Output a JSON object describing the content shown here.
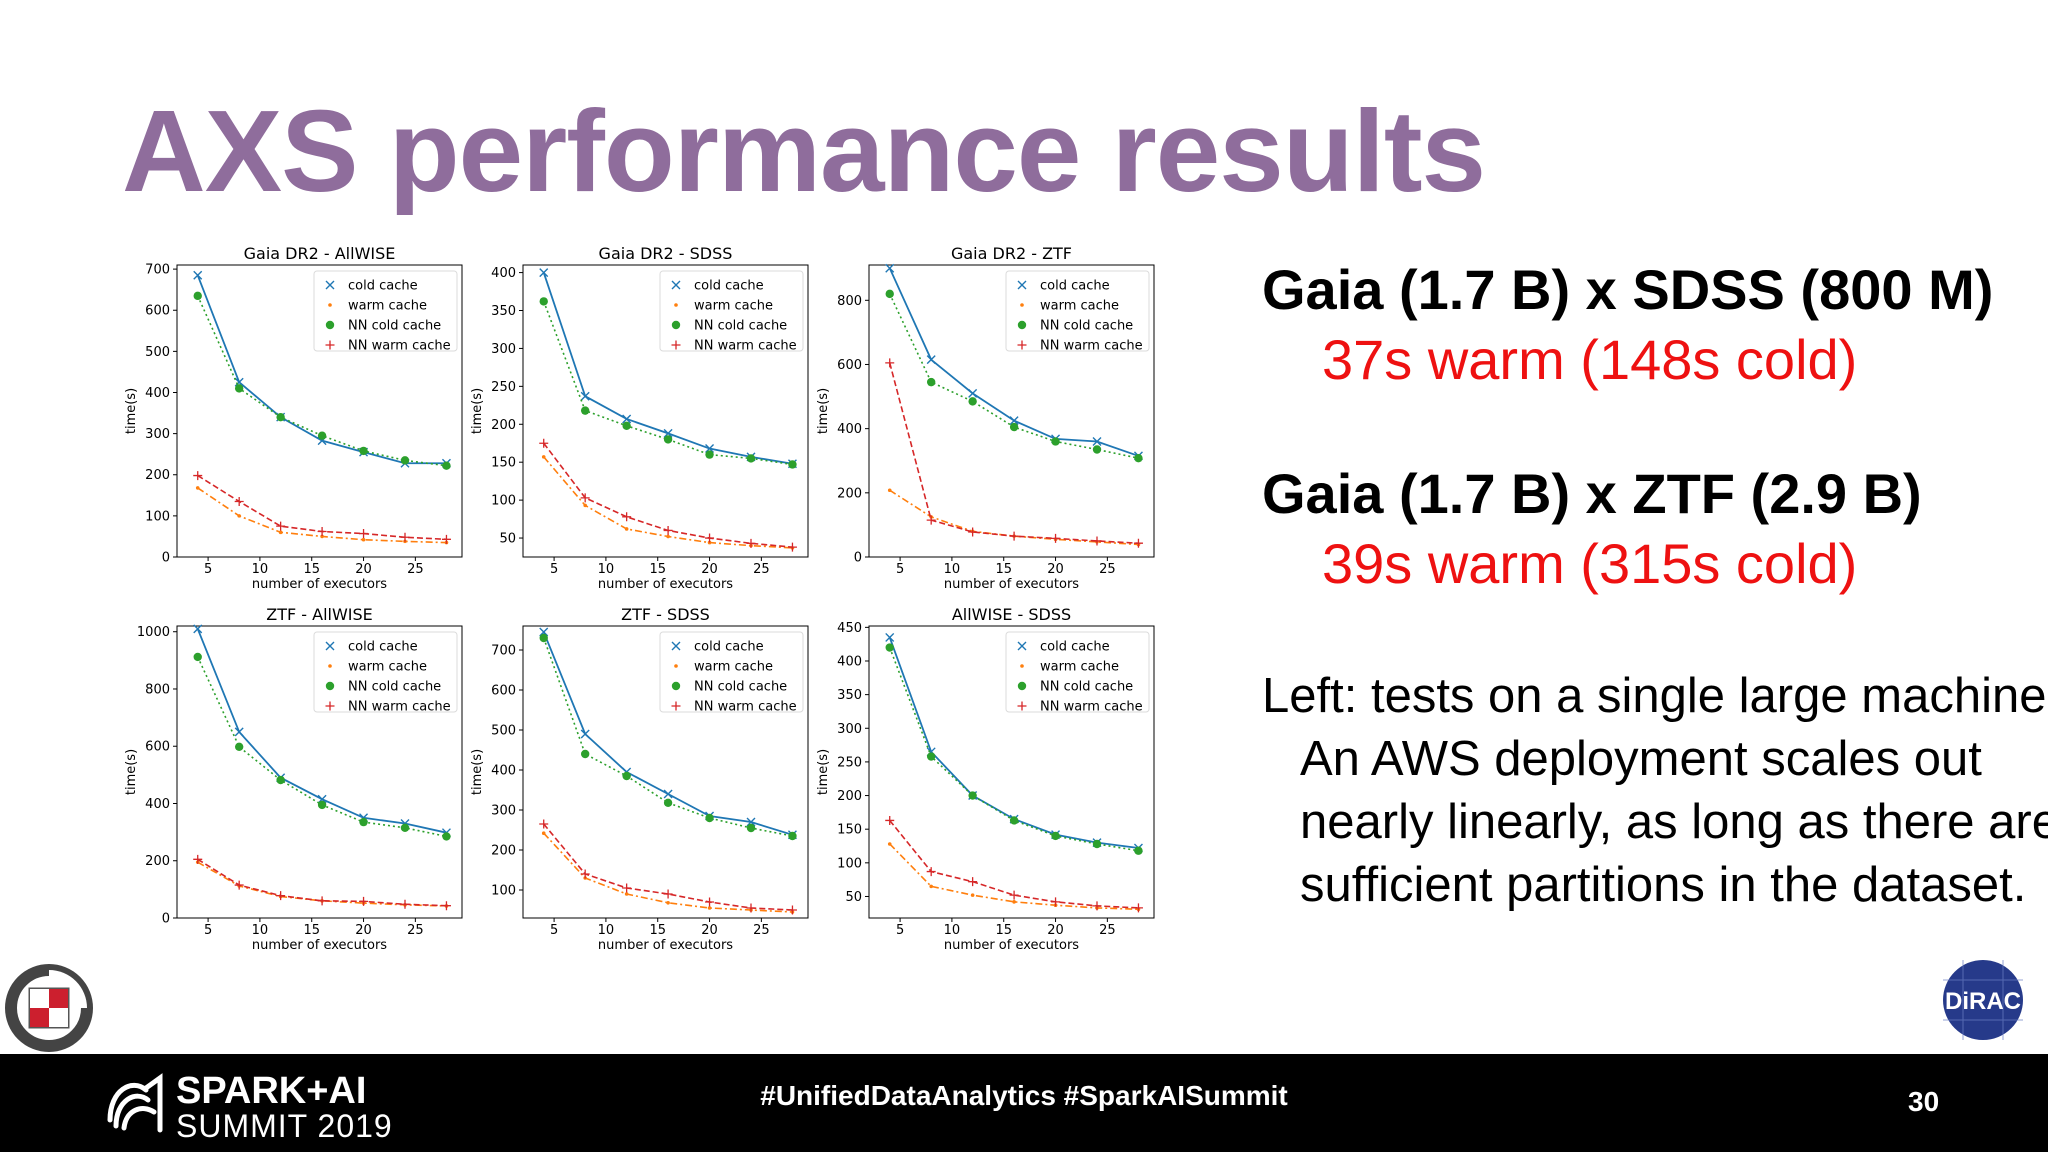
{
  "slide": {
    "title": "AXS performance results",
    "page_number": "30"
  },
  "right_panel": {
    "block1_head": "Gaia (1.7 B) x SDSS (800 M)",
    "block1_sub": "37s warm (148s cold)",
    "block2_head": "Gaia (1.7 B) x ZTF (2.9 B)",
    "block2_sub": "39s warm (315s cold)",
    "note": "Left: tests on a single large machine. An AWS deployment scales out nearly linearly, as long as there are sufficient partitions in the dataset."
  },
  "footer": {
    "brand_line1": "SPARK+AI",
    "brand_line2": "SUMMIT 2019",
    "hashtags": "#UnifiedDataAnalytics #SparkAISummit"
  },
  "logos": {
    "right_badge": "DiRAC"
  },
  "colors": {
    "title": "#8f6d9c",
    "cold": "#1f77b4",
    "warm": "#ff7f0e",
    "nn_cold": "#2ca02c",
    "nn_warm": "#d62728",
    "highlight_red": "#ee1111"
  },
  "chart_data": [
    {
      "type": "line",
      "title": "Gaia DR2 - AllWISE",
      "xlabel": "number of executors",
      "ylabel": "time(s)",
      "xlim": [
        2,
        29.5
      ],
      "ylim": [
        0,
        710
      ],
      "xticks": [
        5,
        10,
        15,
        20,
        25
      ],
      "yticks": [
        0,
        100,
        200,
        300,
        400,
        500,
        600,
        700
      ],
      "legend": "top-right",
      "x": [
        4,
        8,
        12,
        16,
        20,
        24,
        28
      ],
      "series": [
        {
          "name": "cold cache",
          "values": [
            685,
            425,
            340,
            283,
            255,
            228,
            228
          ]
        },
        {
          "name": "warm cache",
          "values": [
            168,
            100,
            60,
            50,
            42,
            38,
            35
          ]
        },
        {
          "name": "NN cold cache",
          "values": [
            635,
            410,
            340,
            295,
            258,
            235,
            222
          ]
        },
        {
          "name": "NN warm cache",
          "values": [
            198,
            135,
            75,
            62,
            57,
            48,
            43
          ]
        }
      ]
    },
    {
      "type": "line",
      "title": "Gaia DR2 - SDSS",
      "xlabel": "number of executors",
      "ylabel": "time(s)",
      "xlim": [
        2,
        29.5
      ],
      "ylim": [
        25,
        410
      ],
      "xticks": [
        5,
        10,
        15,
        20,
        25
      ],
      "yticks": [
        50,
        100,
        150,
        200,
        250,
        300,
        350,
        400
      ],
      "legend": "top-right",
      "x": [
        4,
        8,
        12,
        16,
        20,
        24,
        28
      ],
      "series": [
        {
          "name": "cold cache",
          "values": [
            400,
            237,
            207,
            188,
            168,
            157,
            148
          ]
        },
        {
          "name": "warm cache",
          "values": [
            157,
            93,
            62,
            52,
            44,
            40,
            37
          ]
        },
        {
          "name": "NN cold cache",
          "values": [
            362,
            218,
            198,
            180,
            160,
            155,
            147
          ]
        },
        {
          "name": "NN warm cache",
          "values": [
            175,
            103,
            78,
            60,
            50,
            43,
            38
          ]
        }
      ]
    },
    {
      "type": "line",
      "title": "Gaia DR2 - ZTF",
      "xlabel": "number of executors",
      "ylabel": "time(s)",
      "xlim": [
        2,
        29.5
      ],
      "ylim": [
        0,
        910
      ],
      "xticks": [
        5,
        10,
        15,
        20,
        25
      ],
      "yticks": [
        0,
        200,
        400,
        600,
        800
      ],
      "legend": "top-right",
      "x": [
        4,
        8,
        12,
        16,
        20,
        24,
        28
      ],
      "series": [
        {
          "name": "cold cache",
          "values": [
            900,
            615,
            510,
            425,
            368,
            360,
            315
          ]
        },
        {
          "name": "warm cache",
          "values": [
            208,
            125,
            80,
            65,
            55,
            47,
            39
          ]
        },
        {
          "name": "NN cold cache",
          "values": [
            820,
            545,
            485,
            405,
            360,
            335,
            308
          ]
        },
        {
          "name": "NN warm cache",
          "values": [
            605,
            115,
            78,
            65,
            58,
            50,
            43
          ]
        }
      ]
    },
    {
      "type": "line",
      "title": "ZTF - AllWISE",
      "xlabel": "number of executors",
      "ylabel": "time(s)",
      "xlim": [
        2,
        29.5
      ],
      "ylim": [
        0,
        1020
      ],
      "xticks": [
        5,
        10,
        15,
        20,
        25
      ],
      "yticks": [
        0,
        200,
        400,
        600,
        800,
        1000
      ],
      "legend": "top-right",
      "x": [
        4,
        8,
        12,
        16,
        20,
        24,
        28
      ],
      "series": [
        {
          "name": "cold cache",
          "values": [
            1010,
            650,
            490,
            415,
            350,
            330,
            298
          ]
        },
        {
          "name": "warm cache",
          "values": [
            195,
            112,
            75,
            60,
            52,
            46,
            42
          ]
        },
        {
          "name": "NN cold cache",
          "values": [
            912,
            598,
            482,
            395,
            335,
            315,
            285
          ]
        },
        {
          "name": "NN warm cache",
          "values": [
            205,
            115,
            78,
            60,
            58,
            48,
            43
          ]
        }
      ]
    },
    {
      "type": "line",
      "title": "ZTF - SDSS",
      "xlabel": "number of executors",
      "ylabel": "time(s)",
      "xlim": [
        2,
        29.5
      ],
      "ylim": [
        30,
        760
      ],
      "xticks": [
        5,
        10,
        15,
        20,
        25
      ],
      "yticks": [
        100,
        200,
        300,
        400,
        500,
        600,
        700
      ],
      "legend": "top-right",
      "x": [
        4,
        8,
        12,
        16,
        20,
        24,
        28
      ],
      "series": [
        {
          "name": "cold cache",
          "values": [
            745,
            490,
            395,
            340,
            285,
            270,
            238
          ]
        },
        {
          "name": "warm cache",
          "values": [
            242,
            130,
            90,
            68,
            55,
            50,
            45
          ]
        },
        {
          "name": "NN cold cache",
          "values": [
            730,
            440,
            385,
            318,
            280,
            255,
            235
          ]
        },
        {
          "name": "NN warm cache",
          "values": [
            265,
            140,
            105,
            90,
            70,
            55,
            50
          ]
        }
      ]
    },
    {
      "type": "line",
      "title": "AllWISE - SDSS",
      "xlabel": "number of executors",
      "ylabel": "time(s)",
      "xlim": [
        2,
        29.5
      ],
      "ylim": [
        18,
        452
      ],
      "xticks": [
        5,
        10,
        15,
        20,
        25
      ],
      "yticks": [
        50,
        100,
        150,
        200,
        250,
        300,
        350,
        400,
        450
      ],
      "legend": "top-right",
      "x": [
        4,
        8,
        12,
        16,
        20,
        24,
        28
      ],
      "series": [
        {
          "name": "cold cache",
          "values": [
            435,
            265,
            200,
            165,
            142,
            130,
            122
          ]
        },
        {
          "name": "warm cache",
          "values": [
            128,
            65,
            52,
            42,
            37,
            33,
            31
          ]
        },
        {
          "name": "NN cold cache",
          "values": [
            420,
            258,
            200,
            163,
            140,
            128,
            118
          ]
        },
        {
          "name": "NN warm cache",
          "values": [
            163,
            87,
            72,
            52,
            42,
            36,
            33
          ]
        }
      ]
    }
  ]
}
